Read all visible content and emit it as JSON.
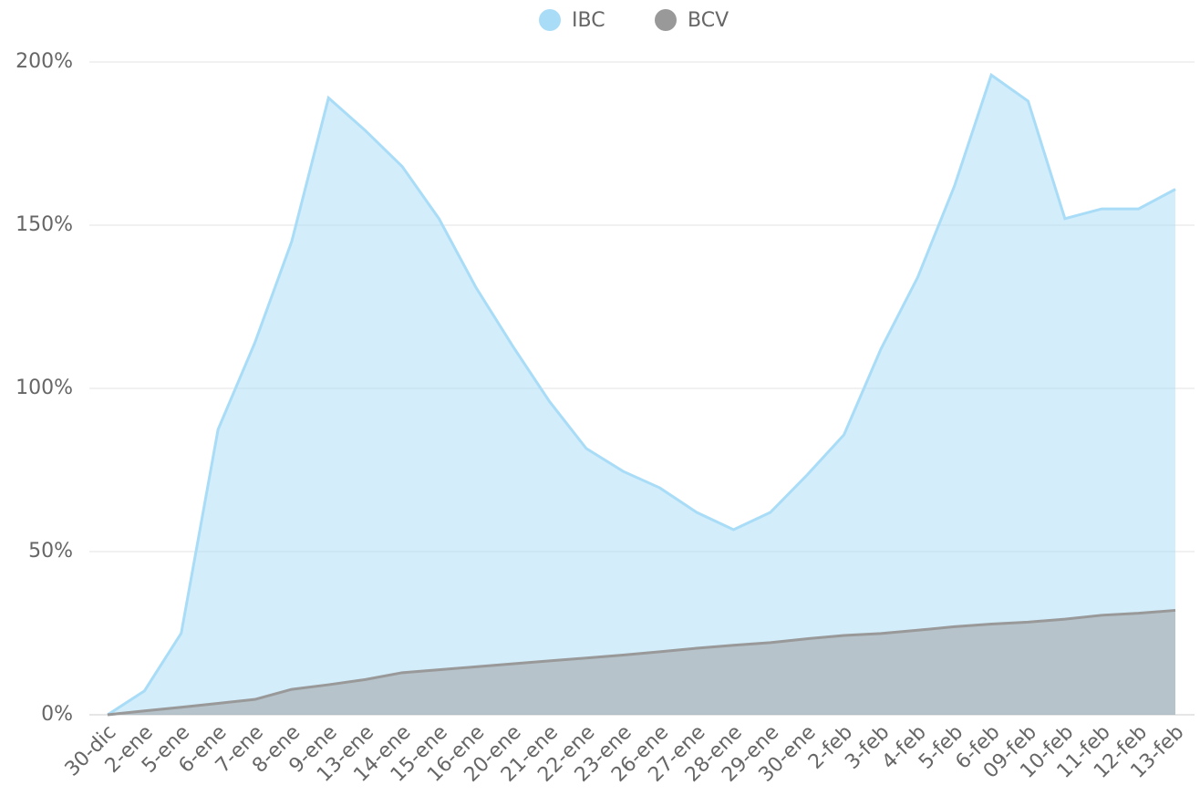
{
  "chart_data": {
    "type": "area",
    "categories": [
      "30-dic",
      "2-ene",
      "5-ene",
      "6-ene",
      "7-ene",
      "8-ene",
      "9-ene",
      "13-ene",
      "14-ene",
      "15-ene",
      "16-ene",
      "20-ene",
      "21-ene",
      "22-ene",
      "23-ene",
      "26-ene",
      "27-ene",
      "28-ene",
      "29-ene",
      "30-ene",
      "2-feb",
      "3-feb",
      "4-feb",
      "5-feb",
      "6-feb",
      "09-feb",
      "10-feb",
      "11-feb",
      "12-feb",
      "13-feb"
    ],
    "series": [
      {
        "name": "IBC",
        "color": "#a8dcf7",
        "values": [
          0,
          7.3,
          25,
          87.4,
          114,
          145,
          189,
          179,
          168,
          152,
          131,
          113,
          96,
          81.6,
          74.6,
          69.5,
          62,
          56.7,
          62,
          73.5,
          85.8,
          112,
          134,
          162,
          196,
          188,
          152,
          155,
          155,
          161
        ]
      },
      {
        "name": "BCV",
        "color": "#999999",
        "values": [
          0,
          1.2,
          2.3,
          3.5,
          4.7,
          7.8,
          9.2,
          10.8,
          12.9,
          13.8,
          14.7,
          15.6,
          16.5,
          17.4,
          18.3,
          19.3,
          20.4,
          21.3,
          22.1,
          23.3,
          24.3,
          24.9,
          25.9,
          27,
          27.8,
          28.4,
          29.3,
          30.5,
          31.1,
          32
        ]
      }
    ],
    "ylim": [
      0,
      200
    ],
    "yticks": [
      {
        "value": 0,
        "label": "0%"
      },
      {
        "value": 50,
        "label": "50%"
      },
      {
        "value": 100,
        "label": "100%"
      },
      {
        "value": 150,
        "label": "150%"
      },
      {
        "value": 200,
        "label": "200%"
      }
    ],
    "grid": true,
    "legend": "top"
  }
}
